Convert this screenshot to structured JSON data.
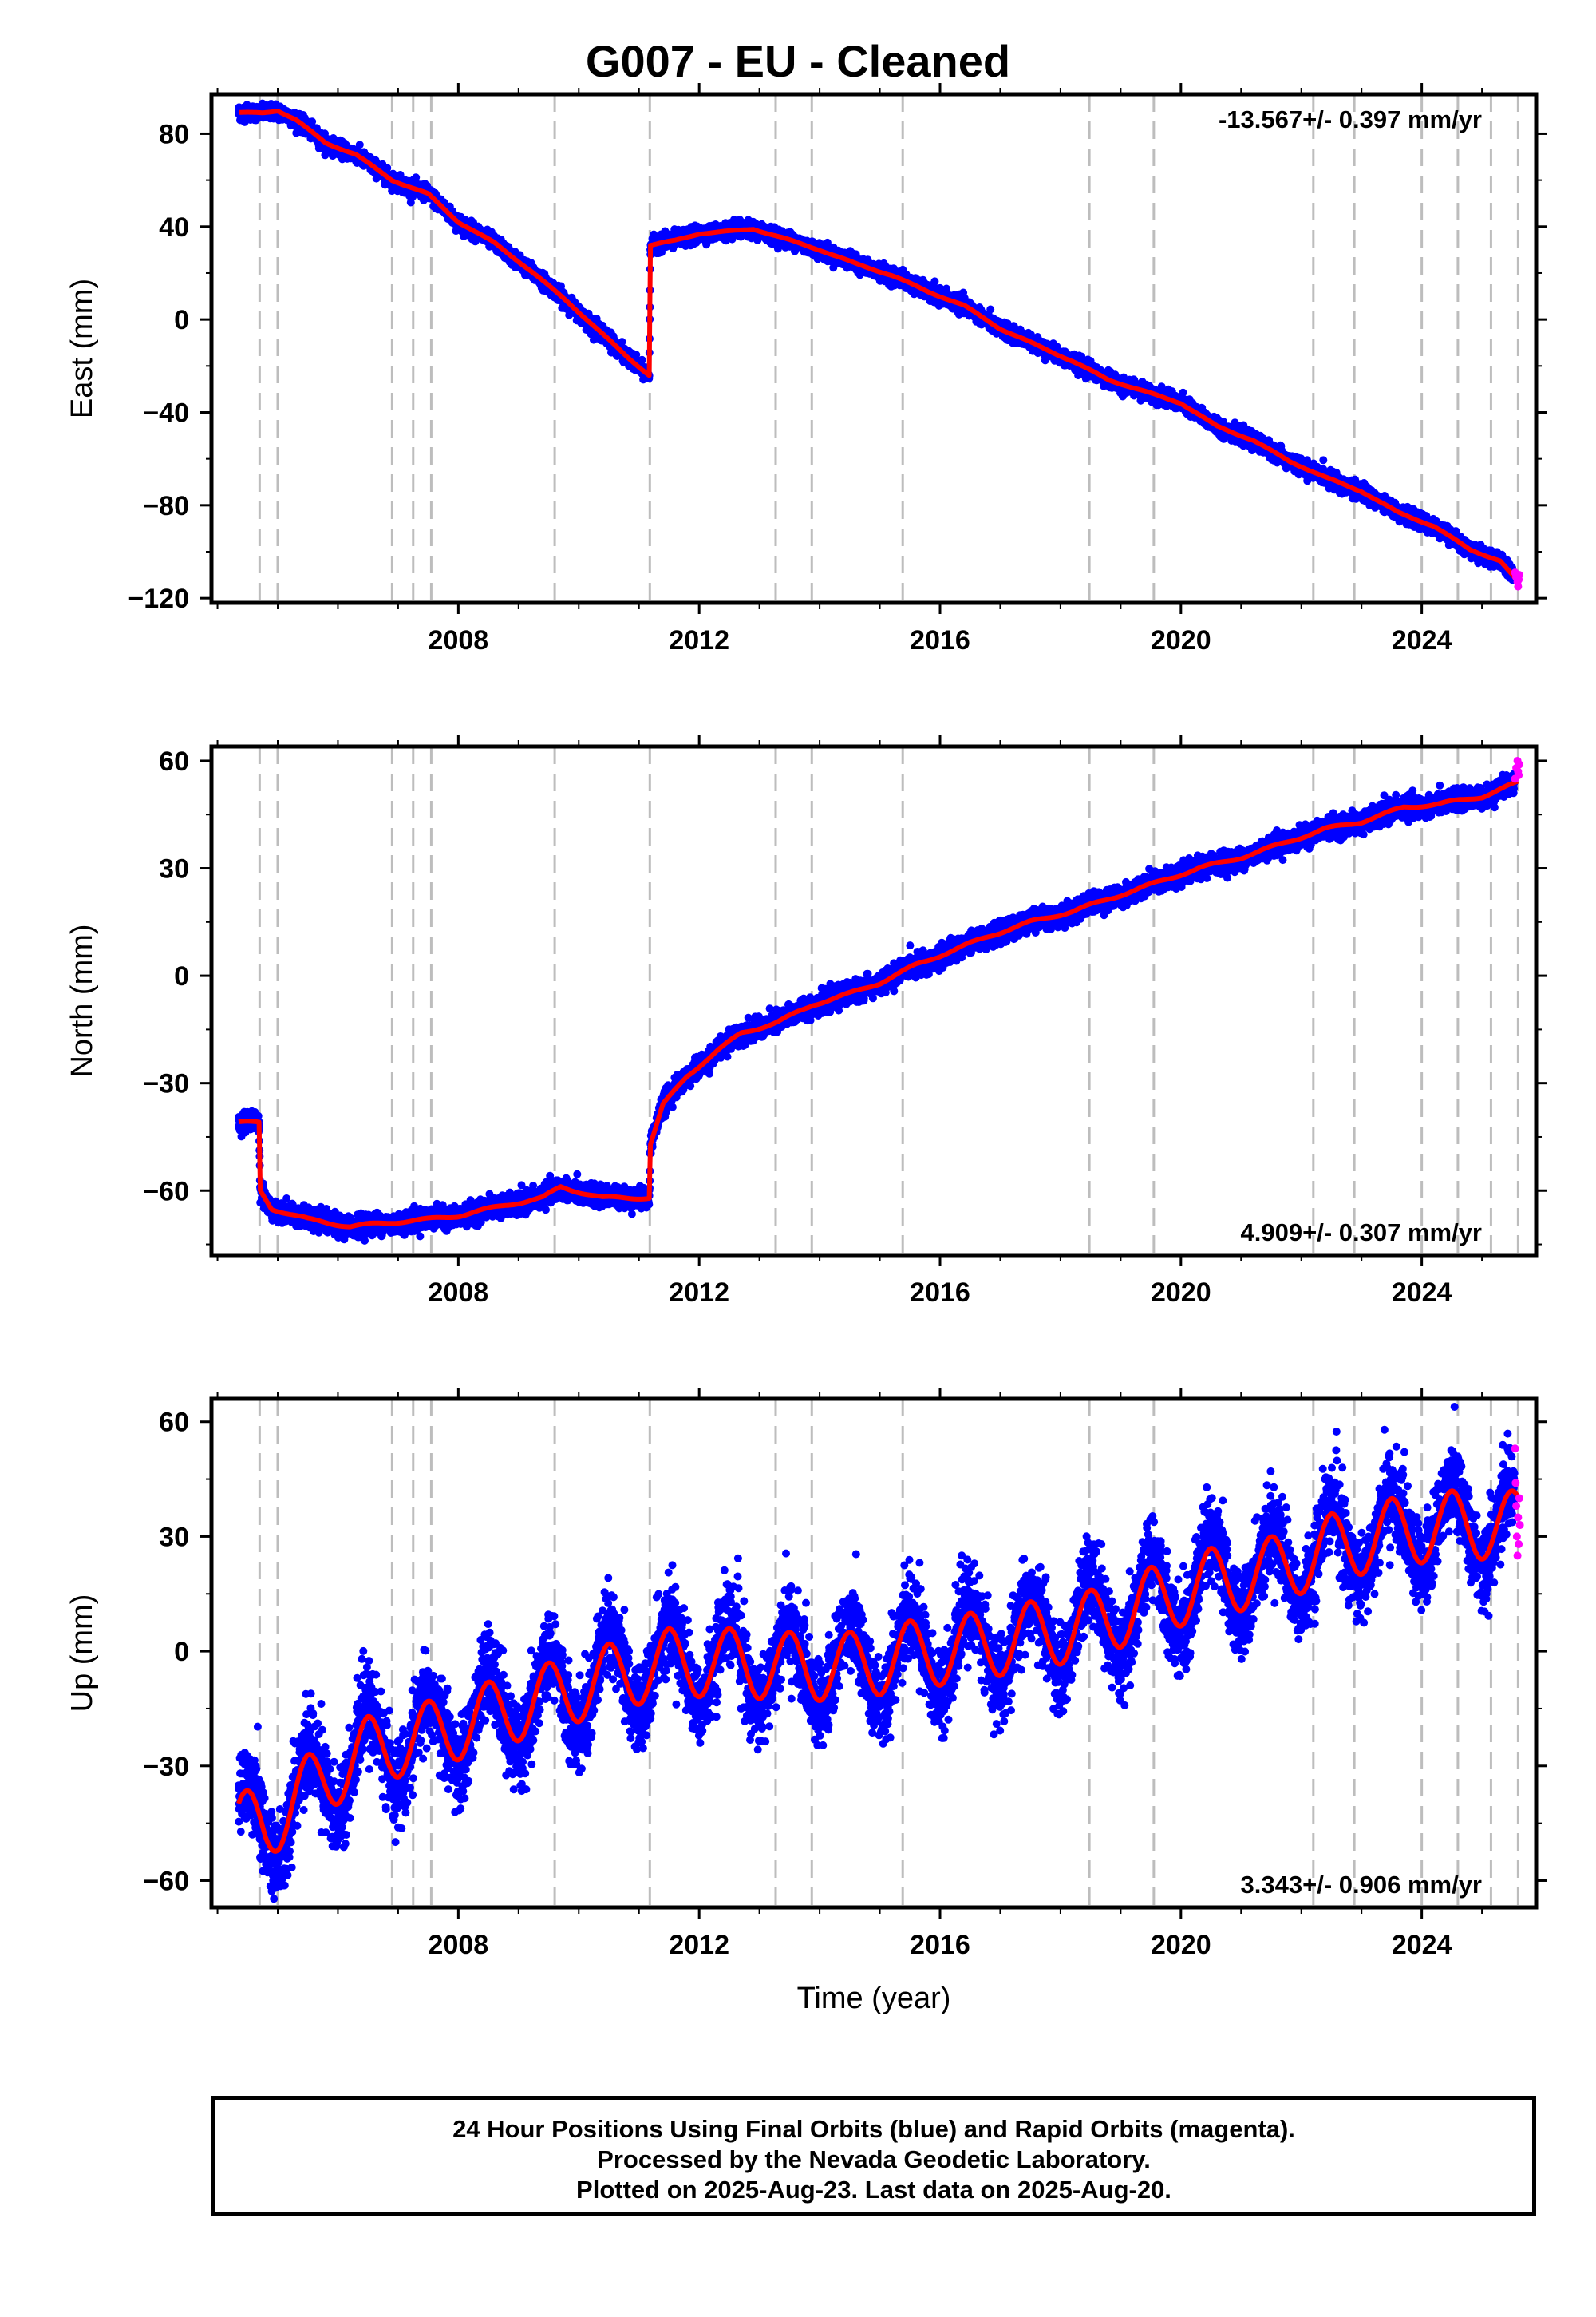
{
  "title": "G007  - EU - Cleaned",
  "footer": {
    "line1": "24 Hour Positions Using Final Orbits (blue) and Rapid Orbits (magenta).",
    "line2": "Processed by the Nevada Geodetic Laboratory.",
    "line3": "Plotted on 2025-Aug-23. Last data on 2025-Aug-20."
  },
  "colors": {
    "final": "#0000ff",
    "rapid": "#ff00ff",
    "model": "#ff0000",
    "event_lines": "#bdbdbd"
  },
  "chart_data": [
    {
      "type": "scatter",
      "ylabel": "East (mm)",
      "xlabel": "",
      "rate_label": "-13.567+/- 0.397 mm/yr",
      "rate_position": "top-right",
      "xlim": [
        2003.9,
        2025.9
      ],
      "ylim": [
        -122,
        97
      ],
      "yticks": [
        -120,
        -80,
        -40,
        0,
        40,
        80
      ],
      "xticks": [
        2008,
        2012,
        2016,
        2020,
        2024
      ],
      "event_lines": [
        2004.7,
        2005.0,
        2006.9,
        2007.25,
        2007.55,
        2009.6,
        2011.18,
        2013.27,
        2013.87,
        2015.38,
        2018.48,
        2019.55,
        2022.2,
        2022.88,
        2024.0,
        2024.6,
        2025.15,
        2025.6
      ],
      "model_knots": [
        [
          2004.3,
          89
        ],
        [
          2004.75,
          89
        ],
        [
          2005.0,
          90
        ],
        [
          2005.3,
          86
        ],
        [
          2005.8,
          76
        ],
        [
          2006.3,
          71
        ],
        [
          2006.9,
          60
        ],
        [
          2007.5,
          54
        ],
        [
          2008.0,
          42
        ],
        [
          2008.6,
          33
        ],
        [
          2009.2,
          21
        ],
        [
          2009.8,
          8
        ],
        [
          2010.3,
          -4
        ],
        [
          2010.8,
          -16
        ],
        [
          2011.17,
          -24
        ],
        [
          2011.19,
          32
        ],
        [
          2011.6,
          34
        ],
        [
          2012.0,
          37
        ],
        [
          2012.5,
          38
        ],
        [
          2012.9,
          39
        ],
        [
          2013.4,
          35
        ],
        [
          2014.0,
          30
        ],
        [
          2014.6,
          24
        ],
        [
          2015.2,
          19
        ],
        [
          2015.8,
          12
        ],
        [
          2016.4,
          6
        ],
        [
          2017.0,
          -4
        ],
        [
          2017.6,
          -11
        ],
        [
          2018.2,
          -18
        ],
        [
          2018.8,
          -26
        ],
        [
          2019.4,
          -31
        ],
        [
          2020.0,
          -36
        ],
        [
          2020.6,
          -46
        ],
        [
          2021.2,
          -52
        ],
        [
          2021.8,
          -61
        ],
        [
          2022.4,
          -68
        ],
        [
          2023.0,
          -74
        ],
        [
          2023.6,
          -83
        ],
        [
          2024.2,
          -89
        ],
        [
          2024.8,
          -99
        ],
        [
          2025.3,
          -104
        ],
        [
          2025.6,
          -113
        ]
      ],
      "rapid_points": [
        [
          2025.55,
          -109
        ],
        [
          2025.57,
          -111
        ],
        [
          2025.59,
          -113
        ],
        [
          2025.6,
          -115
        ],
        [
          2025.61,
          -112
        ],
        [
          2025.62,
          -110
        ]
      ],
      "noise": {
        "scatter_mm": 1.6,
        "annual_mm": 1.0
      }
    },
    {
      "type": "scatter",
      "ylabel": "North (mm)",
      "xlabel": "",
      "rate_label": "4.909+/- 0.307 mm/yr",
      "rate_position": "bottom-right",
      "xlim": [
        2003.9,
        2025.9
      ],
      "ylim": [
        -78,
        64
      ],
      "yticks": [
        -60,
        -30,
        0,
        30,
        60
      ],
      "xticks": [
        2008,
        2012,
        2016,
        2020,
        2024
      ],
      "event_lines": [
        2004.7,
        2005.0,
        2006.9,
        2007.25,
        2007.55,
        2009.6,
        2011.18,
        2013.27,
        2013.87,
        2015.38,
        2018.48,
        2019.55,
        2022.2,
        2022.88,
        2024.0,
        2024.6,
        2025.15,
        2025.6
      ],
      "model_knots": [
        [
          2004.3,
          -41
        ],
        [
          2004.69,
          -41
        ],
        [
          2004.71,
          -60
        ],
        [
          2004.9,
          -65
        ],
        [
          2005.5,
          -68
        ],
        [
          2006.2,
          -70
        ],
        [
          2006.8,
          -69
        ],
        [
          2007.5,
          -68
        ],
        [
          2008.0,
          -67
        ],
        [
          2008.8,
          -64
        ],
        [
          2009.4,
          -62
        ],
        [
          2009.7,
          -59
        ],
        [
          2010.4,
          -62
        ],
        [
          2011.17,
          -62
        ],
        [
          2011.19,
          -47
        ],
        [
          2011.4,
          -36
        ],
        [
          2011.8,
          -28
        ],
        [
          2012.3,
          -21
        ],
        [
          2012.7,
          -16
        ],
        [
          2013.3,
          -13
        ],
        [
          2013.9,
          -8
        ],
        [
          2014.5,
          -5
        ],
        [
          2015.0,
          -2
        ],
        [
          2015.6,
          3
        ],
        [
          2016.2,
          7
        ],
        [
          2016.8,
          11
        ],
        [
          2017.5,
          15
        ],
        [
          2018.2,
          18
        ],
        [
          2018.9,
          22
        ],
        [
          2019.6,
          26
        ],
        [
          2020.3,
          30
        ],
        [
          2021.0,
          33
        ],
        [
          2021.7,
          37
        ],
        [
          2022.4,
          41
        ],
        [
          2023.0,
          43
        ],
        [
          2023.7,
          47
        ],
        [
          2024.3,
          48
        ],
        [
          2025.0,
          50
        ],
        [
          2025.6,
          54
        ]
      ],
      "rapid_points": [
        [
          2025.55,
          55
        ],
        [
          2025.57,
          58
        ],
        [
          2025.59,
          60
        ],
        [
          2025.6,
          57
        ],
        [
          2025.61,
          56
        ],
        [
          2025.62,
          59
        ]
      ],
      "noise": {
        "scatter_mm": 1.4,
        "annual_mm": 1.5
      }
    },
    {
      "type": "scatter",
      "ylabel": "Up (mm)",
      "xlabel": "Time (year)",
      "rate_label": "3.343+/- 0.906 mm/yr",
      "rate_position": "bottom-right",
      "xlim": [
        2003.9,
        2025.9
      ],
      "ylim": [
        -67,
        66
      ],
      "yticks": [
        -60,
        -30,
        0,
        30,
        60
      ],
      "xticks": [
        2008,
        2012,
        2016,
        2020,
        2024
      ],
      "event_lines": [
        2004.7,
        2005.0,
        2006.9,
        2007.25,
        2007.55,
        2009.6,
        2011.18,
        2013.27,
        2013.87,
        2015.38,
        2018.48,
        2019.55,
        2022.2,
        2022.88,
        2024.0,
        2024.6,
        2025.15,
        2025.6
      ],
      "model_knots": [
        [
          2004.3,
          -45
        ],
        [
          2004.8,
          -46
        ],
        [
          2005.5,
          -36
        ],
        [
          2006.5,
          -26
        ],
        [
          2007.5,
          -22
        ],
        [
          2008.5,
          -17
        ],
        [
          2009.5,
          -12
        ],
        [
          2010.5,
          -7
        ],
        [
          2011.5,
          -3
        ],
        [
          2012.5,
          -3
        ],
        [
          2013.5,
          -4
        ],
        [
          2014.5,
          -4
        ],
        [
          2015.5,
          -1
        ],
        [
          2016.5,
          1
        ],
        [
          2017.5,
          4
        ],
        [
          2018.5,
          7
        ],
        [
          2019.5,
          13
        ],
        [
          2020.5,
          18
        ],
        [
          2021.5,
          21
        ],
        [
          2022.5,
          27
        ],
        [
          2023.5,
          31
        ],
        [
          2024.5,
          33
        ],
        [
          2025.6,
          33
        ]
      ],
      "rapid_points": [
        [
          2025.55,
          53
        ],
        [
          2025.56,
          44
        ],
        [
          2025.57,
          38
        ],
        [
          2025.58,
          30
        ],
        [
          2025.59,
          25
        ],
        [
          2025.6,
          35
        ],
        [
          2025.61,
          28
        ],
        [
          2025.62,
          40
        ],
        [
          2025.63,
          33
        ]
      ],
      "noise": {
        "scatter_mm": 5.5,
        "annual_mm": 10.5
      }
    }
  ]
}
